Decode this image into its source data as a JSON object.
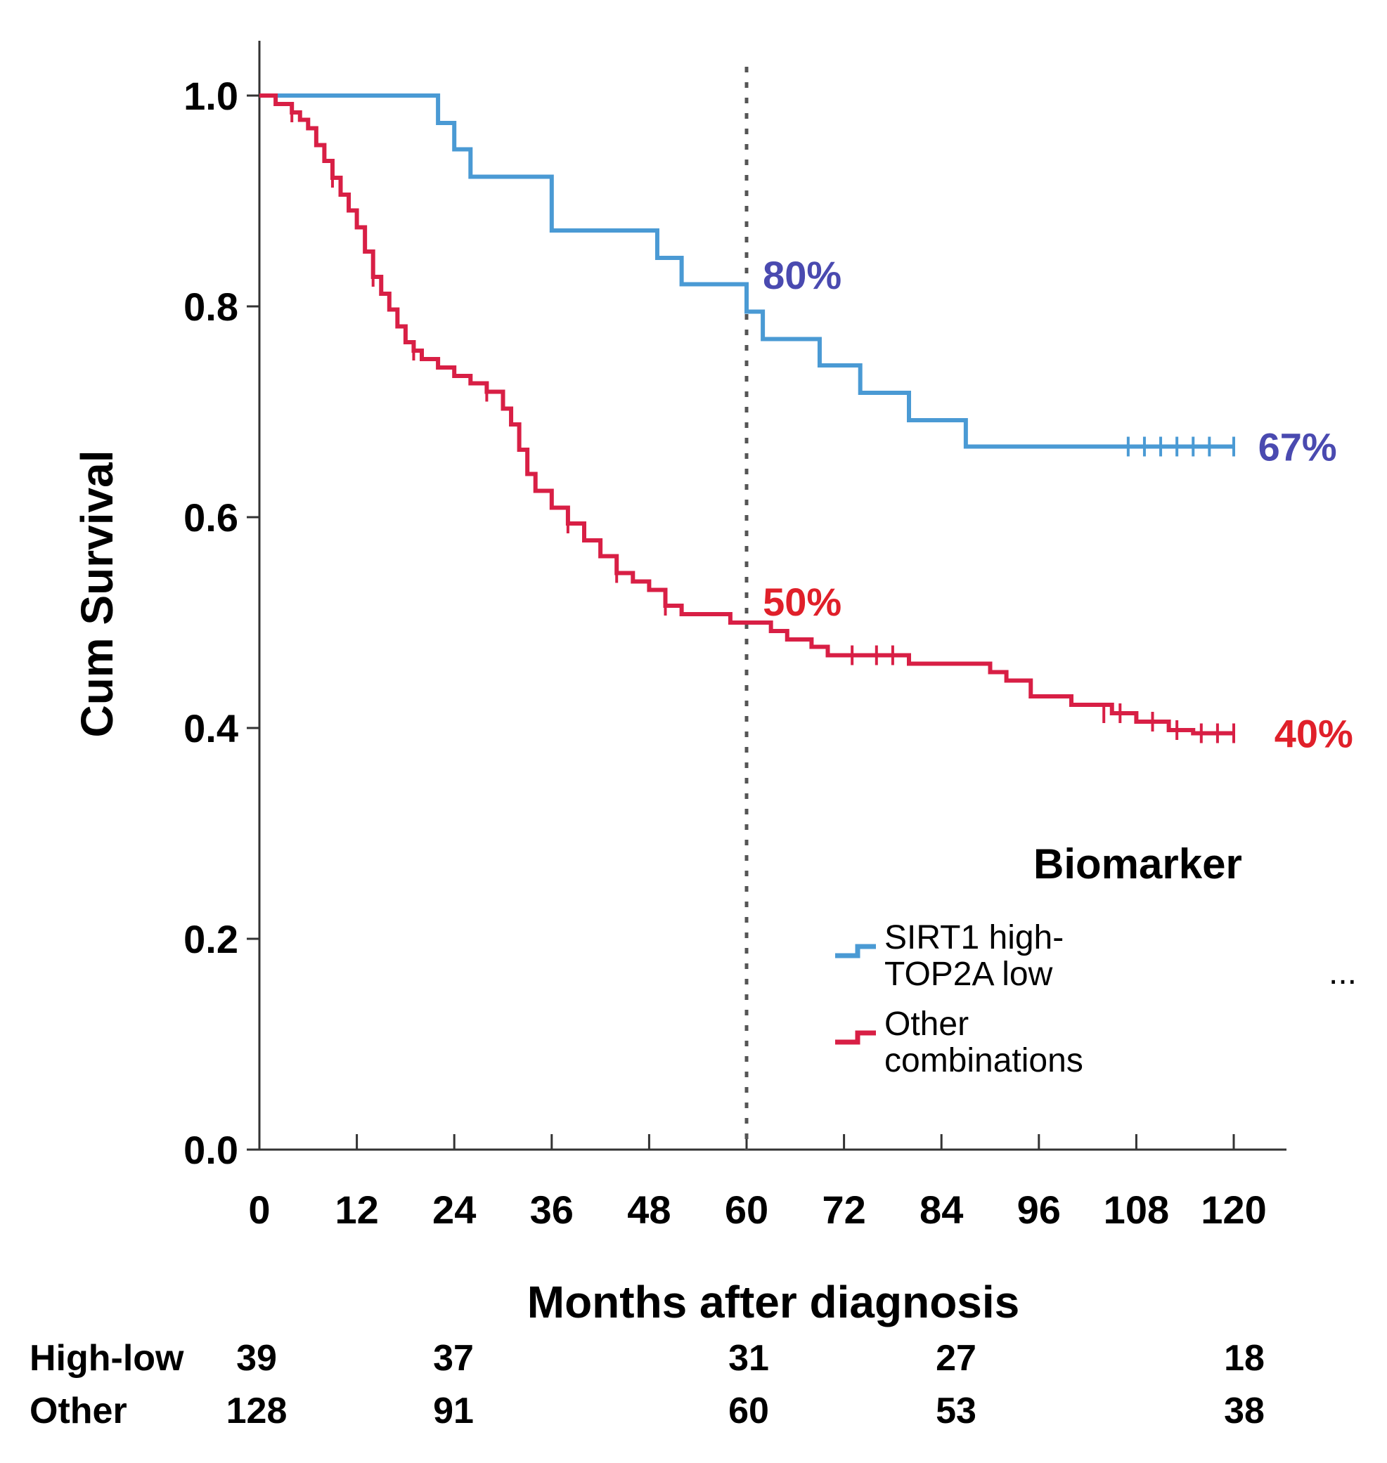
{
  "chart_data": {
    "type": "line",
    "subtype": "kaplan-meier",
    "xlabel": "Months after diagnosis",
    "ylabel": "Cum Survival",
    "xlim": [
      0,
      120
    ],
    "ylim": [
      0,
      1.0
    ],
    "xticks": [
      "0",
      "12",
      "24",
      "36",
      "48",
      "60",
      "72",
      "84",
      "96",
      "108",
      "120"
    ],
    "yticks": [
      "0.0",
      "0.2",
      "0.4",
      "0.6",
      "0.8",
      "1.0"
    ],
    "grid": false,
    "reference_line": {
      "x": 60,
      "style": "dotted"
    },
    "legend": {
      "title": "Biomarker",
      "placement": "bottom-right",
      "entries": [
        {
          "label_lines": [
            "SIRT1 high-",
            "TOP2A low"
          ],
          "color": "#4a9ad4"
        },
        {
          "label_lines": [
            "Other",
            "combinations"
          ],
          "color": "#d81f45"
        }
      ]
    },
    "series": [
      {
        "color": "#4a9ad4",
        "x": [
          0,
          21,
          22,
          24,
          26,
          36,
          49,
          52,
          60,
          62,
          64,
          69,
          74,
          80,
          87,
          120
        ],
        "y": [
          1.0,
          1.0,
          0.974,
          0.949,
          0.923,
          0.872,
          0.846,
          0.821,
          0.795,
          0.769,
          0.769,
          0.744,
          0.718,
          0.692,
          0.667,
          0.667
        ],
        "censor_x": [
          107,
          109,
          111,
          113,
          115,
          117,
          120
        ],
        "censor_y": [
          0.667,
          0.667,
          0.667,
          0.667,
          0.667,
          0.667,
          0.667
        ]
      },
      {
        "color": "#d81f45",
        "x": [
          0,
          2,
          4,
          5,
          6,
          7,
          8,
          9,
          10,
          11,
          12,
          13,
          14,
          15,
          16,
          17,
          18,
          19,
          20,
          22,
          24,
          26,
          28,
          30,
          31,
          32,
          33,
          34,
          36,
          38,
          40,
          42,
          44,
          46,
          48,
          50,
          52,
          55,
          58,
          60,
          63,
          65,
          68,
          70,
          72,
          75,
          80,
          85,
          90,
          92,
          95,
          100,
          105,
          108,
          112,
          115,
          120
        ],
        "y": [
          1.0,
          0.992,
          0.984,
          0.977,
          0.969,
          0.953,
          0.938,
          0.922,
          0.906,
          0.891,
          0.875,
          0.852,
          0.828,
          0.812,
          0.797,
          0.781,
          0.766,
          0.758,
          0.75,
          0.742,
          0.734,
          0.727,
          0.719,
          0.703,
          0.688,
          0.664,
          0.641,
          0.625,
          0.609,
          0.594,
          0.578,
          0.563,
          0.547,
          0.539,
          0.531,
          0.516,
          0.508,
          0.508,
          0.5,
          0.5,
          0.492,
          0.484,
          0.477,
          0.469,
          0.469,
          0.469,
          0.461,
          0.461,
          0.453,
          0.445,
          0.43,
          0.422,
          0.414,
          0.406,
          0.398,
          0.395,
          0.395
        ],
        "censor_x": [
          4,
          9,
          14,
          19,
          28,
          38,
          44,
          50,
          73,
          76,
          78,
          104,
          106,
          110,
          113,
          116,
          118,
          120
        ],
        "censor_y": [
          0.984,
          0.922,
          0.828,
          0.758,
          0.719,
          0.594,
          0.547,
          0.516,
          0.469,
          0.469,
          0.469,
          0.414,
          0.414,
          0.406,
          0.398,
          0.395,
          0.395,
          0.395
        ]
      }
    ],
    "annotations": [
      {
        "text": "80%",
        "x": 62,
        "y": 0.83,
        "color": "#4a4ab0"
      },
      {
        "text": "67%",
        "x": 123,
        "y": 0.667,
        "color": "#4a4ab0"
      },
      {
        "text": "50%",
        "x": 62,
        "y": 0.52,
        "color": "#e0202a"
      },
      {
        "text": "40%",
        "x": 125,
        "y": 0.395,
        "color": "#e0202a"
      }
    ],
    "risk_table": {
      "rows": [
        {
          "label": "High-low",
          "values": [
            "39",
            "37",
            "31",
            "27",
            "18"
          ]
        },
        {
          "label": "Other",
          "values": [
            "128",
            "91",
            "60",
            "53",
            "38"
          ]
        }
      ],
      "time_points": [
        0,
        24,
        60,
        84,
        120
      ]
    },
    "extra_mark": "..."
  }
}
